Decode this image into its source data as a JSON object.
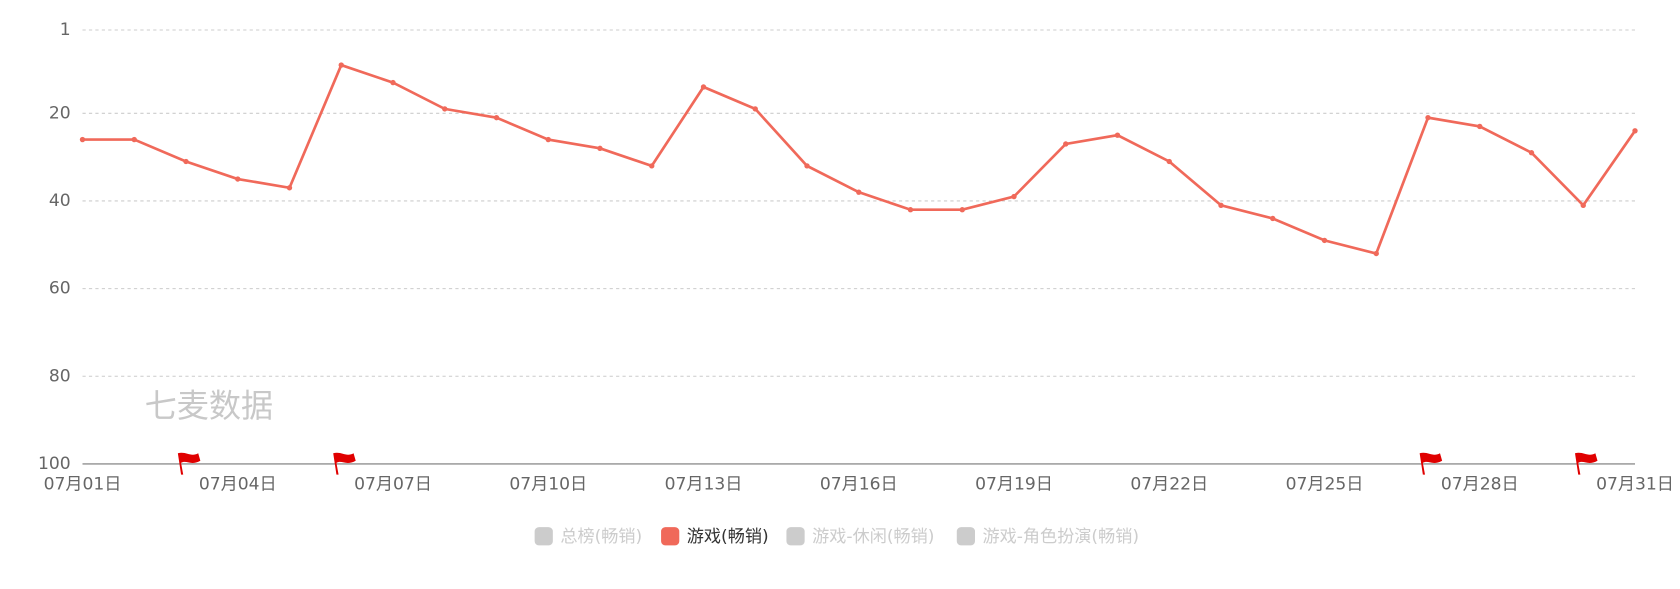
{
  "chart_data": {
    "type": "line",
    "watermark": "七麦数据",
    "categories": [
      "07月01日",
      null,
      null,
      "07月04日",
      null,
      null,
      "07月07日",
      null,
      null,
      "07月10日",
      null,
      null,
      "07月13日",
      null,
      null,
      "07月16日",
      null,
      null,
      "07月19日",
      null,
      null,
      "07月22日",
      null,
      null,
      "07月25日",
      null,
      null,
      "07月28日",
      null,
      null,
      "07月31日"
    ],
    "series": [
      {
        "name": "总榜(畅销)",
        "visible": false
      },
      {
        "name": "游戏(畅销)",
        "color": "#f0695a",
        "visible": true,
        "values": [
          26,
          26,
          31,
          35,
          37,
          9,
          13,
          19,
          21,
          26,
          28,
          32,
          14,
          19,
          32,
          38,
          42,
          42,
          39,
          27,
          25,
          31,
          41,
          44,
          49,
          52,
          21,
          23,
          29,
          41,
          24
        ]
      },
      {
        "name": "游戏-休闲(畅销)",
        "visible": false
      },
      {
        "name": "游戏-角色扮演(畅销)",
        "visible": false
      }
    ],
    "ylim": [
      1,
      100
    ],
    "y_inverted": true,
    "yticks": [
      1,
      20,
      40,
      60,
      80,
      100
    ],
    "grid": true
  }
}
